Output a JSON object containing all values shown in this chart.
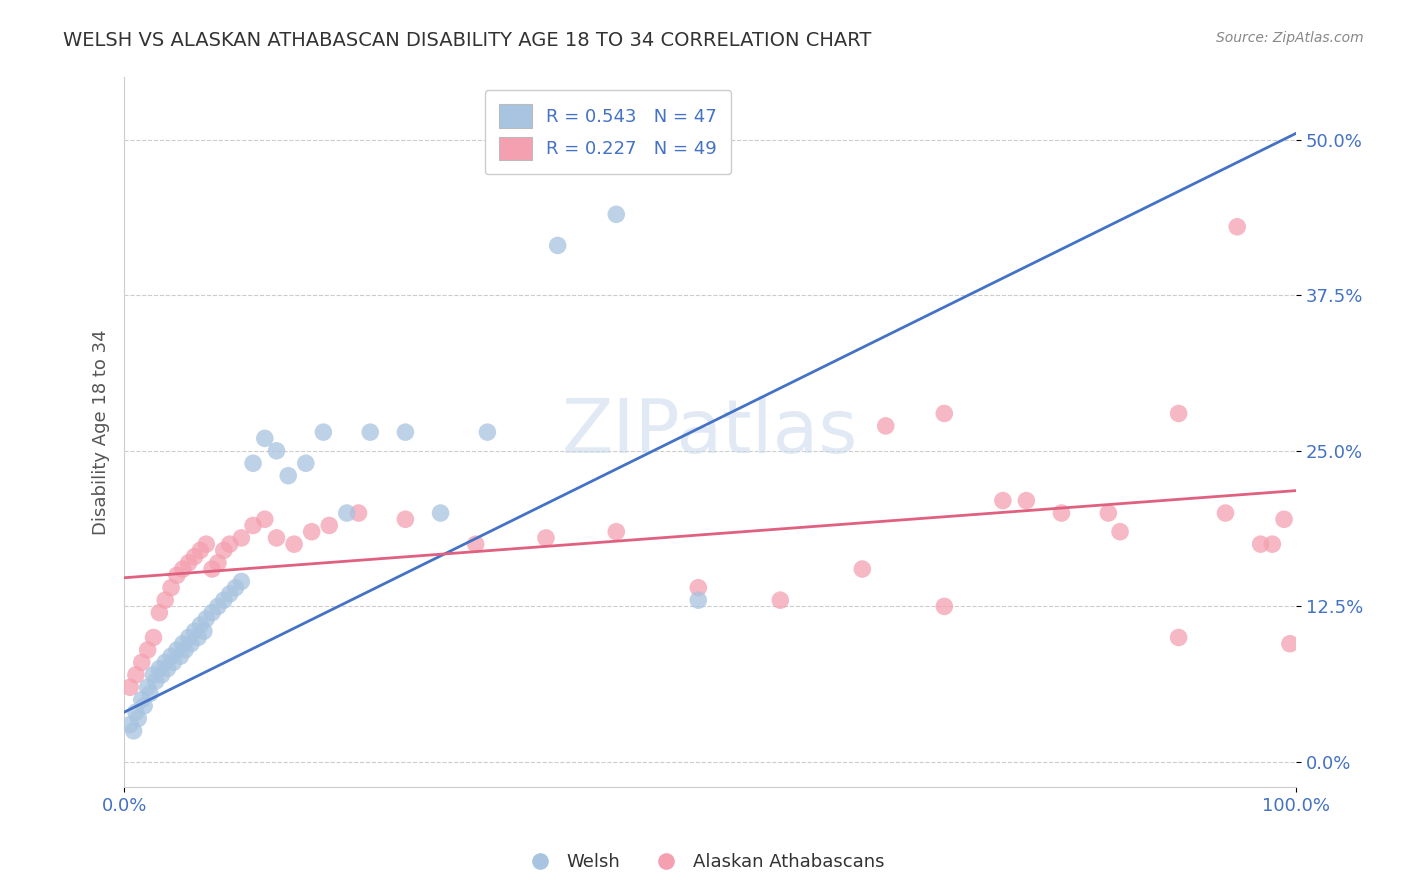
{
  "title": "WELSH VS ALASKAN ATHABASCAN DISABILITY AGE 18 TO 34 CORRELATION CHART",
  "source": "Source: ZipAtlas.com",
  "ylabel": "Disability Age 18 to 34",
  "xlabel": "",
  "xlim": [
    0.0,
    1.0
  ],
  "ylim": [
    -0.02,
    0.55
  ],
  "yticks": [
    0.0,
    0.125,
    0.25,
    0.375,
    0.5
  ],
  "ytick_labels": [
    "0.0%",
    "12.5%",
    "25.0%",
    "37.5%",
    "50.0%"
  ],
  "xticks": [
    0.0,
    1.0
  ],
  "xtick_labels": [
    "0.0%",
    "100.0%"
  ],
  "welsh_R": 0.543,
  "welsh_N": 47,
  "athabascan_R": 0.227,
  "athabascan_N": 49,
  "welsh_color": "#a8c4e0",
  "athabascan_color": "#f4a0b0",
  "welsh_line_color": "#4472c4",
  "athabascan_line_color": "#e06080",
  "background_color": "#ffffff",
  "grid_color": "#cccccc",
  "welsh_scatter_x": [
    0.005,
    0.008,
    0.01,
    0.012,
    0.015,
    0.017,
    0.02,
    0.022,
    0.025,
    0.027,
    0.03,
    0.032,
    0.035,
    0.037,
    0.04,
    0.042,
    0.045,
    0.048,
    0.05,
    0.052,
    0.055,
    0.057,
    0.06,
    0.063,
    0.065,
    0.068,
    0.07,
    0.075,
    0.08,
    0.085,
    0.09,
    0.095,
    0.1,
    0.11,
    0.12,
    0.13,
    0.14,
    0.155,
    0.17,
    0.19,
    0.21,
    0.24,
    0.27,
    0.31,
    0.37,
    0.42,
    0.49
  ],
  "welsh_scatter_y": [
    0.03,
    0.025,
    0.04,
    0.035,
    0.05,
    0.045,
    0.06,
    0.055,
    0.07,
    0.065,
    0.075,
    0.07,
    0.08,
    0.075,
    0.085,
    0.08,
    0.09,
    0.085,
    0.095,
    0.09,
    0.1,
    0.095,
    0.105,
    0.1,
    0.11,
    0.105,
    0.115,
    0.12,
    0.125,
    0.13,
    0.135,
    0.14,
    0.145,
    0.24,
    0.26,
    0.25,
    0.23,
    0.24,
    0.265,
    0.2,
    0.265,
    0.265,
    0.2,
    0.265,
    0.415,
    0.44,
    0.13
  ],
  "athabascan_scatter_x": [
    0.005,
    0.01,
    0.015,
    0.02,
    0.025,
    0.03,
    0.035,
    0.04,
    0.045,
    0.05,
    0.055,
    0.06,
    0.065,
    0.07,
    0.075,
    0.08,
    0.085,
    0.09,
    0.1,
    0.11,
    0.12,
    0.13,
    0.145,
    0.16,
    0.175,
    0.2,
    0.24,
    0.3,
    0.36,
    0.42,
    0.49,
    0.56,
    0.63,
    0.7,
    0.77,
    0.84,
    0.9,
    0.94,
    0.97,
    0.99,
    0.65,
    0.7,
    0.75,
    0.8,
    0.85,
    0.9,
    0.95,
    0.98,
    0.995
  ],
  "athabascan_scatter_y": [
    0.06,
    0.07,
    0.08,
    0.09,
    0.1,
    0.12,
    0.13,
    0.14,
    0.15,
    0.155,
    0.16,
    0.165,
    0.17,
    0.175,
    0.155,
    0.16,
    0.17,
    0.175,
    0.18,
    0.19,
    0.195,
    0.18,
    0.175,
    0.185,
    0.19,
    0.2,
    0.195,
    0.175,
    0.18,
    0.185,
    0.14,
    0.13,
    0.155,
    0.125,
    0.21,
    0.2,
    0.28,
    0.2,
    0.175,
    0.195,
    0.27,
    0.28,
    0.21,
    0.2,
    0.185,
    0.1,
    0.43,
    0.175,
    0.095
  ]
}
